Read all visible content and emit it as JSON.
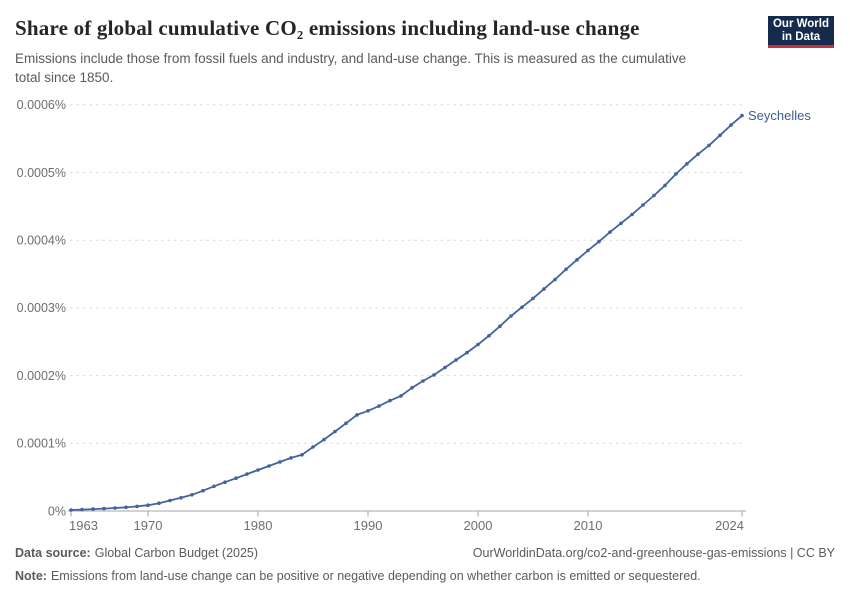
{
  "header": {
    "title": "Share of global cumulative CO₂ emissions including land-use change",
    "subtitle": "Emissions include those from fossil fuels and industry, and land-use change. This is measured as the cumulative total since 1850.",
    "logo": {
      "line1": "Our World",
      "line2": "in Data"
    }
  },
  "footer": {
    "data_source_label": "Data source:",
    "data_source": "Global Carbon Budget (2025)",
    "link": "OurWorldinData.org/co2-and-greenhouse-gas-emissions | CC BY",
    "note_label": "Note:",
    "note": "Emissions from land-use change can be positive or negative depending on whether carbon is emitted or sequestered."
  },
  "colors": {
    "line": "#44639c",
    "series_label": "#3d5c92",
    "grid": "#dadada",
    "axis": "#a5a5a5",
    "tick_text": "#6e6e6e",
    "logo_bg": "#142b4d",
    "logo_red": "#c9303c"
  },
  "chart_data": {
    "type": "line",
    "title": "Share of global cumulative CO₂ emissions including land-use change",
    "subtitle": "Emissions include those from fossil fuels and industry, and land-use change. This is measured as the cumulative total since 1850.",
    "unit": "%",
    "grid": "horizontal dashed",
    "legend_position": "end-of-line label",
    "xlim": [
      1963,
      2024
    ],
    "ylim": [
      0,
      0.0006
    ],
    "x_ticks": [
      {
        "year": 1963,
        "label": "1963"
      },
      {
        "year": 1970,
        "label": "1970"
      },
      {
        "year": 1980,
        "label": "1980"
      },
      {
        "year": 1990,
        "label": "1990"
      },
      {
        "year": 2000,
        "label": "2000"
      },
      {
        "year": 2010,
        "label": "2010"
      },
      {
        "year": 2024,
        "label": "2024"
      }
    ],
    "y_ticks": [
      {
        "value": 0,
        "label": "0%"
      },
      {
        "value": 0.0001,
        "label": "0.0001%"
      },
      {
        "value": 0.0002,
        "label": "0.0002%"
      },
      {
        "value": 0.0003,
        "label": "0.0003%"
      },
      {
        "value": 0.0004,
        "label": "0.0004%"
      },
      {
        "value": 0.0005,
        "label": "0.0005%"
      },
      {
        "value": 0.0006,
        "label": "0.0006%"
      }
    ],
    "series": [
      {
        "name": "Seychelles",
        "color": "#44639c",
        "years": [
          1963,
          1964,
          1965,
          1966,
          1967,
          1968,
          1969,
          1970,
          1971,
          1972,
          1973,
          1974,
          1975,
          1976,
          1977,
          1978,
          1979,
          1980,
          1981,
          1982,
          1983,
          1984,
          1985,
          1986,
          1987,
          1988,
          1989,
          1990,
          1991,
          1992,
          1993,
          1994,
          1995,
          1996,
          1997,
          1998,
          1999,
          2000,
          2001,
          2002,
          2003,
          2004,
          2005,
          2006,
          2007,
          2008,
          2009,
          2010,
          2011,
          2012,
          2013,
          2014,
          2015,
          2016,
          2017,
          2018,
          2019,
          2020,
          2021,
          2022,
          2023,
          2024
        ],
        "values": [
          1.5e-06,
          2e-06,
          2.8e-06,
          3.6e-06,
          4.5e-06,
          5.5e-06,
          6.8e-06,
          8.5e-06,
          1.15e-05,
          1.55e-05,
          1.95e-05,
          2.4e-05,
          3e-05,
          3.65e-05,
          4.25e-05,
          4.85e-05,
          5.45e-05,
          6.05e-05,
          6.65e-05,
          7.25e-05,
          7.85e-05,
          8.3e-05,
          9.45e-05,
          0.0001055,
          0.0001175,
          0.0001295,
          0.000142,
          0.000148,
          0.000155,
          0.000163,
          0.00017,
          0.000182,
          0.000192,
          0.000201,
          0.000212,
          0.000223,
          0.000234,
          0.000246,
          0.000259,
          0.000273,
          0.000288,
          0.000301,
          0.000314,
          0.000328,
          0.000342,
          0.000357,
          0.000371,
          0.000385,
          0.000398,
          0.000412,
          0.000425,
          0.000438,
          0.000452,
          0.000466,
          0.000481,
          0.000498,
          0.000513,
          0.000527,
          0.00054,
          0.000555,
          0.00057,
          0.000584
        ]
      }
    ]
  }
}
